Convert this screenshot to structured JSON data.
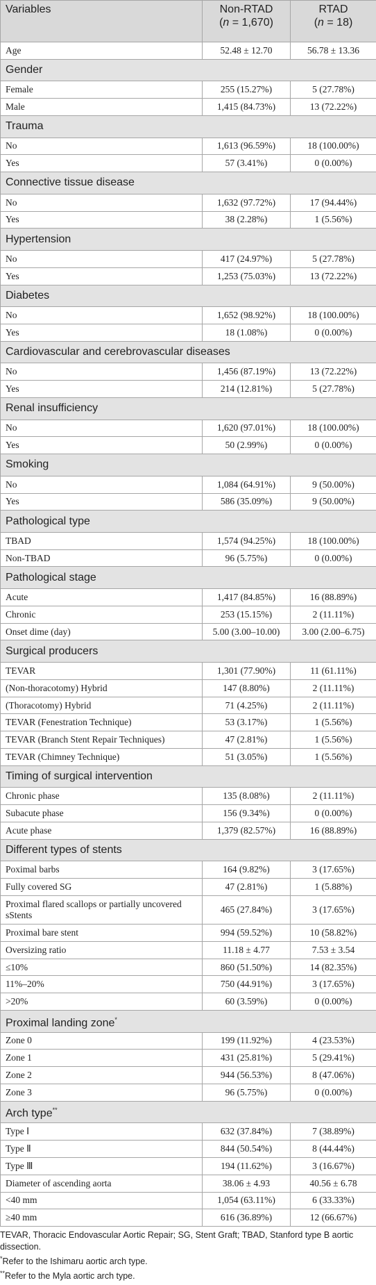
{
  "table": {
    "header": [
      {
        "line1": "Variables"
      },
      {
        "line1": "Non-RTAD",
        "pre": "(",
        "var": "n",
        "post": " = 1,670)"
      },
      {
        "line1": "RTAD",
        "pre": "(",
        "var": "n",
        "post": " = 18)"
      }
    ],
    "rows": [
      {
        "cells": [
          "Age",
          "52.48 ± 12.70",
          "56.78 ± 13.36"
        ]
      },
      {
        "section": "Gender"
      },
      {
        "cells": [
          "Female",
          "255 (15.27%)",
          "5 (27.78%)"
        ]
      },
      {
        "cells": [
          "Male",
          "1,415 (84.73%)",
          "13 (72.22%)"
        ]
      },
      {
        "section": "Trauma"
      },
      {
        "cells": [
          "No",
          "1,613 (96.59%)",
          "18 (100.00%)"
        ]
      },
      {
        "cells": [
          "Yes",
          "57 (3.41%)",
          "0 (0.00%)"
        ]
      },
      {
        "section": "Connective tissue disease"
      },
      {
        "cells": [
          "No",
          "1,632 (97.72%)",
          "17 (94.44%)"
        ]
      },
      {
        "cells": [
          "Yes",
          "38 (2.28%)",
          "1 (5.56%)"
        ]
      },
      {
        "section": "Hypertension"
      },
      {
        "cells": [
          "No",
          "417 (24.97%)",
          "5 (27.78%)"
        ]
      },
      {
        "cells": [
          "Yes",
          "1,253 (75.03%)",
          "13 (72.22%)"
        ]
      },
      {
        "section": "Diabetes"
      },
      {
        "cells": [
          "No",
          "1,652 (98.92%)",
          "18 (100.00%)"
        ]
      },
      {
        "cells": [
          "Yes",
          "18 (1.08%)",
          "0 (0.00%)"
        ]
      },
      {
        "section": "Cardiovascular and cerebrovascular diseases"
      },
      {
        "cells": [
          "No",
          "1,456 (87.19%)",
          "13 (72.22%)"
        ]
      },
      {
        "cells": [
          "Yes",
          "214 (12.81%)",
          "5 (27.78%)"
        ]
      },
      {
        "section": "Renal insufficiency"
      },
      {
        "cells": [
          "No",
          "1,620 (97.01%)",
          "18 (100.00%)"
        ]
      },
      {
        "cells": [
          "Yes",
          "50 (2.99%)",
          "0 (0.00%)"
        ]
      },
      {
        "section": "Smoking"
      },
      {
        "cells": [
          "No",
          "1,084 (64.91%)",
          "9 (50.00%)"
        ]
      },
      {
        "cells": [
          "Yes",
          "586 (35.09%)",
          "9 (50.00%)"
        ]
      },
      {
        "section": "Pathological type"
      },
      {
        "cells": [
          "TBAD",
          "1,574 (94.25%)",
          "18 (100.00%)"
        ]
      },
      {
        "cells": [
          "Non-TBAD",
          "96 (5.75%)",
          "0 (0.00%)"
        ]
      },
      {
        "section": "Pathological stage"
      },
      {
        "cells": [
          "Acute",
          "1,417 (84.85%)",
          "16 (88.89%)"
        ]
      },
      {
        "cells": [
          "Chronic",
          "253 (15.15%)",
          "2 (11.11%)"
        ]
      },
      {
        "cells": [
          "Onset dime (day)",
          "5.00 (3.00–10.00)",
          "3.00 (2.00–6.75)"
        ]
      },
      {
        "section": "Surgical producers"
      },
      {
        "cells": [
          "TEVAR",
          "1,301 (77.90%)",
          "11 (61.11%)"
        ]
      },
      {
        "cells": [
          "(Non-thoracotomy) Hybrid",
          "147 (8.80%)",
          "2 (11.11%)"
        ]
      },
      {
        "cells": [
          "(Thoracotomy) Hybrid",
          "71 (4.25%)",
          "2 (11.11%)"
        ]
      },
      {
        "cells": [
          "TEVAR (Fenestration Technique)",
          "53 (3.17%)",
          "1 (5.56%)"
        ]
      },
      {
        "cells": [
          "TEVAR (Branch Stent Repair Techniques)",
          "47 (2.81%)",
          "1 (5.56%)"
        ]
      },
      {
        "cells": [
          "TEVAR (Chimney Technique)",
          "51 (3.05%)",
          "1 (5.56%)"
        ]
      },
      {
        "section": "Timing of surgical intervention"
      },
      {
        "cells": [
          "Chronic phase",
          "135 (8.08%)",
          "2 (11.11%)"
        ]
      },
      {
        "cells": [
          "Subacute phase",
          "156 (9.34%)",
          "0 (0.00%)"
        ]
      },
      {
        "cells": [
          "Acute phase",
          "1,379 (82.57%)",
          "16 (88.89%)"
        ]
      },
      {
        "section": "Different types of stents"
      },
      {
        "cells": [
          "Poximal barbs",
          "164 (9.82%)",
          "3 (17.65%)"
        ]
      },
      {
        "cells": [
          "Fully covered SG",
          "47 (2.81%)",
          "1 (5.88%)"
        ]
      },
      {
        "cells": [
          "Proximal flared scallops or partially uncovered sStents",
          "465 (27.84%)",
          "3 (17.65%)"
        ],
        "tall": true
      },
      {
        "cells": [
          "Proximal bare stent",
          "994 (59.52%)",
          "10 (58.82%)"
        ]
      },
      {
        "cells": [
          "Oversizing ratio",
          "11.18 ± 4.77",
          "7.53 ± 3.54"
        ]
      },
      {
        "cells": [
          "≤10%",
          "860 (51.50%)",
          "14 (82.35%)"
        ]
      },
      {
        "cells": [
          "11%–20%",
          "750 (44.91%)",
          "3 (17.65%)"
        ]
      },
      {
        "cells": [
          ">20%",
          "60 (3.59%)",
          "0 (0.00%)"
        ]
      },
      {
        "section": "Proximal landing zone",
        "mark": "*"
      },
      {
        "cells": [
          "Zone 0",
          "199 (11.92%)",
          "4 (23.53%)"
        ]
      },
      {
        "cells": [
          "Zone 1",
          "431 (25.81%)",
          "5 (29.41%)"
        ]
      },
      {
        "cells": [
          "Zone 2",
          "944 (56.53%)",
          "8 (47.06%)"
        ]
      },
      {
        "cells": [
          "Zone 3",
          "96 (5.75%)",
          "0 (0.00%)"
        ]
      },
      {
        "section": "Arch type",
        "mark": "**"
      },
      {
        "cells": [
          "Type Ⅰ",
          "632 (37.84%)",
          "7 (38.89%)"
        ]
      },
      {
        "cells": [
          "Type Ⅱ",
          "844 (50.54%)",
          "8 (44.44%)"
        ]
      },
      {
        "cells": [
          "Type Ⅲ",
          "194 (11.62%)",
          "3 (16.67%)"
        ]
      },
      {
        "cells": [
          "Diameter of ascending aorta",
          "38.06 ± 4.93",
          "40.56 ± 6.78"
        ]
      },
      {
        "cells": [
          "<40 mm",
          "1,054 (63.11%)",
          "6 (33.33%)"
        ]
      },
      {
        "cells": [
          "≥40 mm",
          "616 (36.89%)",
          "12 (66.67%)"
        ]
      }
    ],
    "footnotes": [
      {
        "text": "TEVAR, Thoracic Endovascular Aortic Repair; SG, Stent Graft; TBAD, Stanford type B aortic dissection."
      },
      {
        "mark": "*",
        "text": "Refer to the Ishimaru aortic arch type."
      },
      {
        "mark": "**",
        "text": "Refer to the Myla aortic arch type."
      }
    ]
  }
}
